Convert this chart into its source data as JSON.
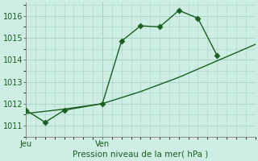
{
  "xlabel": "Pression niveau de la mer( hPa )",
  "background_color": "#ceeee4",
  "grid_color": "#aad4c8",
  "line_color": "#1a5e20",
  "ylim": [
    1010.5,
    1016.6
  ],
  "yticks": [
    1011,
    1012,
    1013,
    1014,
    1015,
    1016
  ],
  "day_labels": [
    "Jeu",
    "Ven"
  ],
  "jeu_x": 0,
  "ven_x": 8,
  "xlim": [
    0,
    24
  ],
  "line1_x": [
    0,
    2,
    4,
    8,
    10,
    12,
    14,
    16,
    18,
    20
  ],
  "line1_y": [
    1011.7,
    1011.15,
    1011.7,
    1012.0,
    1014.85,
    1015.55,
    1015.5,
    1016.25,
    1015.9,
    1014.2
  ],
  "line2_x": [
    0,
    4,
    8,
    12,
    16,
    20,
    24
  ],
  "line2_y": [
    1011.55,
    1011.75,
    1012.0,
    1012.55,
    1013.2,
    1013.95,
    1014.7
  ],
  "marker": "D",
  "markersize": 3.5,
  "linewidth": 1.0
}
